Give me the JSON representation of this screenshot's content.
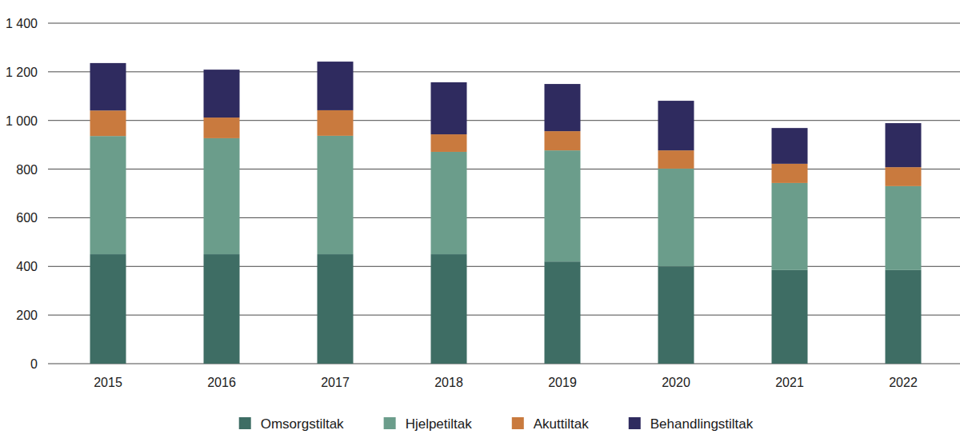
{
  "chart_data": {
    "type": "bar",
    "stacked": true,
    "grid": true,
    "legend": "bottom",
    "categories": [
      "2015",
      "2016",
      "2017",
      "2018",
      "2019",
      "2020",
      "2021",
      "2022"
    ],
    "series": [
      {
        "name": "Omsorgstiltak",
        "color": "#3e6d64",
        "values": [
          450,
          450,
          450,
          450,
          420,
          400,
          385,
          385
        ]
      },
      {
        "name": "Hjelpetiltak",
        "color": "#6b9d8b",
        "values": [
          486,
          477,
          487,
          421,
          457,
          402,
          358,
          345
        ]
      },
      {
        "name": "Akuttiltak",
        "color": "#c97a3e",
        "values": [
          105,
          85,
          105,
          72,
          79,
          75,
          79,
          78
        ]
      },
      {
        "name": "Behandlingstiltak",
        "color": "#2f2b5f",
        "values": [
          195,
          197,
          200,
          214,
          194,
          204,
          147,
          181
        ]
      }
    ],
    "ylim": [
      0,
      1400
    ],
    "yticks": [
      0,
      200,
      400,
      600,
      800,
      {
        "value": 1000,
        "label": "1 000"
      },
      {
        "value": 1200,
        "label": "1 200"
      },
      {
        "value": 1400,
        "label": "1 400"
      }
    ]
  }
}
